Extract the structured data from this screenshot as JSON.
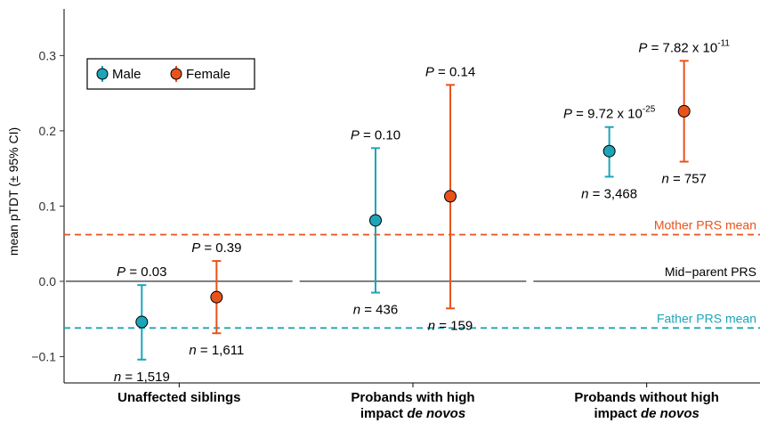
{
  "chart_data": {
    "type": "scatter",
    "ylabel": "mean pTDT (± 95% CI)",
    "ylim": [
      -0.135,
      0.362
    ],
    "yticks": [
      -0.1,
      0.0,
      0.1,
      0.2,
      0.3
    ],
    "ytick_labels": [
      "−0.1",
      "0.0",
      "0.1",
      "0.2",
      "0.3"
    ],
    "categories": [
      {
        "line1": "Unaffected siblings",
        "line2_plain": "",
        "line2_italic": ""
      },
      {
        "line1": "Probands with high",
        "line2_plain": "impact ",
        "line2_italic": "de novos"
      },
      {
        "line1": "Probands without high",
        "line2_plain": "impact ",
        "line2_italic": "de novos"
      }
    ],
    "legend": {
      "position": "top-left",
      "entries": [
        {
          "name": "Male",
          "color": "#1CA5B8"
        },
        {
          "name": "Female",
          "color": "#E8531C"
        }
      ]
    },
    "series": [
      {
        "name": "Male",
        "color": "#1CA5B8",
        "points": [
          {
            "category": 0,
            "y": -0.054,
            "lo": -0.104,
            "hi": -0.005,
            "p_text": " = 0.03",
            "p_exp": "",
            "n_text": " = 1,519"
          },
          {
            "category": 1,
            "y": 0.081,
            "lo": -0.015,
            "hi": 0.177,
            "p_text": " = 0.10",
            "p_exp": "",
            "n_text": " = 436"
          },
          {
            "category": 2,
            "y": 0.173,
            "lo": 0.139,
            "hi": 0.205,
            "p_text": " = 9.72 x 10",
            "p_exp": "-25",
            "n_text": " = 3,468"
          }
        ]
      },
      {
        "name": "Female",
        "color": "#E8531C",
        "points": [
          {
            "category": 0,
            "y": -0.021,
            "lo": -0.069,
            "hi": 0.027,
            "p_text": " = 0.39",
            "p_exp": "",
            "n_text": " = 1,611"
          },
          {
            "category": 1,
            "y": 0.113,
            "lo": -0.036,
            "hi": 0.261,
            "p_text": " = 0.14",
            "p_exp": "",
            "n_text": " = 159"
          },
          {
            "category": 2,
            "y": 0.226,
            "lo": 0.159,
            "hi": 0.293,
            "p_text": " = 7.82 x 10",
            "p_exp": "-11",
            "n_text": " = 757"
          }
        ]
      }
    ],
    "reference_lines": [
      {
        "label": "Mother PRS mean",
        "y": 0.062,
        "color": "#E8531C",
        "style": "dashed"
      },
      {
        "label": "Mid−parent PRS",
        "y": 0.0,
        "color": "#000000",
        "style": "solid"
      },
      {
        "label": "Father PRS mean",
        "y": -0.062,
        "color": "#1CA5B8",
        "style": "dashed"
      }
    ],
    "grid": false
  }
}
